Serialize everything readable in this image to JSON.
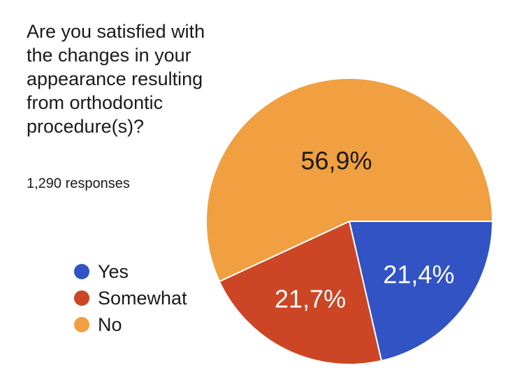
{
  "chart_data": {
    "type": "pie",
    "title_lines": [
      "Are you satisfied with",
      "the changes in your",
      "appearance resulting",
      "from orthodontic",
      "procedure(s)?"
    ],
    "subtitle": "1,290 responses",
    "slices": [
      {
        "name": "Yes",
        "value": 21.4,
        "label": "21,4%",
        "color": "#3153c4",
        "label_color": "#ffffff"
      },
      {
        "name": "Somewhat",
        "value": 21.7,
        "label": "21,7%",
        "color": "#cc4525",
        "label_color": "#ffffff"
      },
      {
        "name": "No",
        "value": 56.9,
        "label": "56,9%",
        "color": "#f0a040",
        "label_color": "#1a1a1a"
      }
    ],
    "start_angle_deg": 90,
    "direction": "clockwise",
    "legend_position": "left"
  }
}
